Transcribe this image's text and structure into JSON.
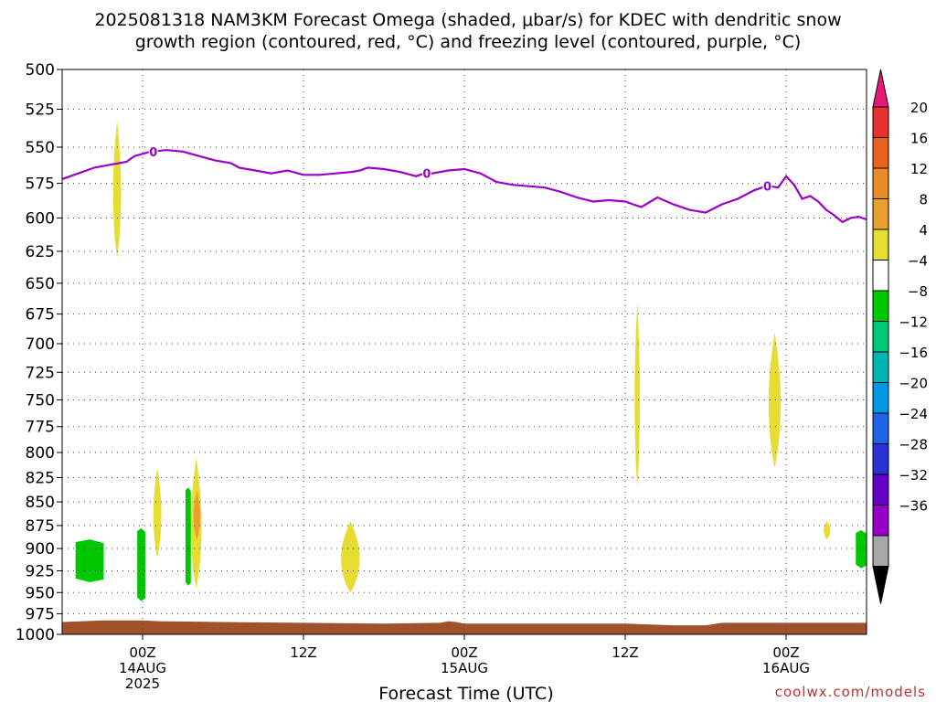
{
  "title": {
    "line1": "2025081318 NAM3KM Forecast Omega (shaded, μbar/s) for KDEC with dendritic snow",
    "line2": "growth region (contoured, red, °C) and freezing level (contoured, purple, °C)"
  },
  "credit": "coolwx.com/models",
  "chart_data": {
    "type": "area",
    "title": "2025081318 NAM3KM Forecast Omega (shaded, μbar/s) for KDEC with dendritic snow growth region (contoured, red, °C) and freezing level (contoured, purple, °C)",
    "xlabel": "Forecast Time (UTC)",
    "ylabel": "",
    "x_unit": "forecast hour from 2025-08-13 18Z",
    "xlim": [
      0,
      60
    ],
    "ylim": [
      1000,
      500
    ],
    "y_scale": "log-pressure (reversed)",
    "grid": true,
    "y_ticks": [
      500,
      525,
      550,
      575,
      600,
      625,
      650,
      675,
      700,
      725,
      750,
      775,
      800,
      825,
      850,
      875,
      900,
      925,
      950,
      975,
      1000
    ],
    "x_ticks": [
      {
        "hour": 6,
        "lines": [
          "00Z",
          "14AUG",
          "2025"
        ]
      },
      {
        "hour": 18,
        "lines": [
          "12Z"
        ]
      },
      {
        "hour": 30,
        "lines": [
          "00Z",
          "15AUG"
        ]
      },
      {
        "hour": 42,
        "lines": [
          "12Z"
        ]
      },
      {
        "hour": 54,
        "lines": [
          "00Z",
          "16AUG"
        ]
      }
    ],
    "colorbar": {
      "levels": [
        "20",
        "16",
        "12",
        "8",
        "4",
        "−4",
        "−8",
        "−12",
        "−16",
        "−20",
        "−24",
        "−28",
        "−32",
        "−36"
      ],
      "colors": [
        "#e8187a",
        "#e83232",
        "#e8641e",
        "#e88c28",
        "#e8a032",
        "#e6dc32",
        "#ffffff",
        "#00c800",
        "#00c878",
        "#00b4b4",
        "#0096e6",
        "#1e64e6",
        "#2832d2",
        "#6400c8",
        "#9600c8",
        "#a8a8a8",
        "#000000"
      ]
    },
    "freezing_level": {
      "name": "0",
      "color": "#9b00c8",
      "x": [
        0,
        0.6,
        1.2,
        2.4,
        3.6,
        4.8,
        5.4,
        6.6,
        7.8,
        9,
        10.2,
        11.4,
        12.6,
        13.2,
        14.4,
        15.6,
        16.8,
        18,
        19.2,
        20.4,
        21.6,
        22.2,
        22.8,
        24,
        25.2,
        26.4,
        27,
        27.6,
        28.8,
        30,
        31.2,
        32.4,
        33.6,
        34.8,
        36,
        37.2,
        38.4,
        39.6,
        40.8,
        42,
        42.6,
        43.2,
        44.4,
        45.6,
        46.8,
        48,
        49.2,
        50.4,
        51.6,
        52.2,
        52.8,
        53.4,
        54,
        54.6,
        55.2,
        55.8,
        56.4,
        57,
        57.6,
        58.2,
        58.8,
        59.4,
        60
      ],
      "y": [
        572,
        570,
        568,
        564,
        562,
        560,
        556,
        553,
        552,
        553,
        556,
        559,
        561,
        564,
        566,
        568,
        566,
        569,
        569,
        568,
        567,
        566,
        564,
        565,
        567,
        570,
        568,
        568,
        566,
        565,
        568,
        574,
        576,
        577,
        578,
        581,
        585,
        588,
        587,
        588,
        590,
        592,
        585,
        590,
        594,
        596,
        590,
        586,
        580,
        578,
        577,
        578,
        570,
        576,
        586,
        584,
        588,
        594,
        598,
        603,
        600,
        599,
        601
      ]
    },
    "omega_regions": [
      {
        "category": "4 to 8",
        "color": "#e6dc32",
        "hours": [
          3.8,
          4.4
        ],
        "pressure": [
          630,
          532
        ]
      },
      {
        "category": "4 to 8",
        "color": "#e6dc32",
        "hours": [
          6.8,
          7.4
        ],
        "pressure": [
          910,
          815
        ]
      },
      {
        "category": "4 to 8",
        "color": "#e6dc32",
        "hours": [
          9.6,
          10.4
        ],
        "pressure": [
          945,
          805
        ]
      },
      {
        "category": "8 to 12",
        "color": "#e8a032",
        "hours": [
          9.8,
          10.3
        ],
        "pressure": [
          890,
          838
        ]
      },
      {
        "category": "4 to 8",
        "color": "#e6dc32",
        "hours": [
          20.8,
          22.2
        ],
        "pressure": [
          950,
          870
        ]
      },
      {
        "category": "4 to 8",
        "color": "#e6dc32",
        "hours": [
          42.7,
          43.1
        ],
        "pressure": [
          835,
          665
        ]
      },
      {
        "category": "4 to 8",
        "color": "#e6dc32",
        "hours": [
          52.7,
          53.6
        ],
        "pressure": [
          815,
          690
        ]
      },
      {
        "category": "4 to 8",
        "color": "#e6dc32",
        "hours": [
          56.8,
          57.3
        ],
        "pressure": [
          890,
          870
        ]
      },
      {
        "category": "-8 to -4",
        "color": "#00c800",
        "hours": [
          1.0,
          3.1
        ],
        "pressure": [
          938,
          890
        ]
      },
      {
        "category": "-8 to -4",
        "color": "#00c800",
        "hours": [
          5.6,
          6.2
        ],
        "pressure": [
          960,
          878
        ]
      },
      {
        "category": "-8 to -4",
        "color": "#00c800",
        "hours": [
          9.2,
          9.6
        ],
        "pressure": [
          942,
          835
        ]
      },
      {
        "category": "-8 to -4",
        "color": "#00c800",
        "hours": [
          59.2,
          60
        ],
        "pressure": [
          922,
          880
        ]
      }
    ],
    "terrain": {
      "color": "#a0522d",
      "x": [
        0,
        3,
        6,
        7.2,
        12,
        18,
        24,
        28.2,
        28.8,
        29.4,
        30,
        36,
        42,
        45.6,
        48,
        49.2,
        54,
        60
      ],
      "surface_pressure": [
        985,
        983,
        983,
        984,
        985,
        986,
        987,
        986,
        984,
        985,
        987,
        987,
        987,
        989,
        989,
        986,
        986,
        986
      ]
    }
  }
}
